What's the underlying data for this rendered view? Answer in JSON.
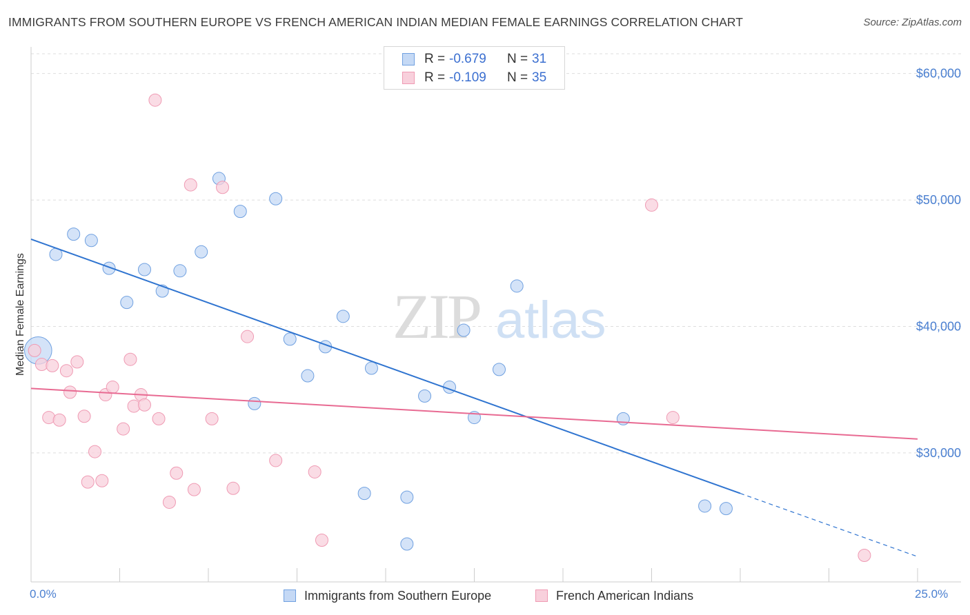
{
  "chart_data": {
    "type": "scatter",
    "title": "IMMIGRANTS FROM SOUTHERN EUROPE VS FRENCH AMERICAN INDIAN MEDIAN FEMALE EARNINGS CORRELATION CHART",
    "source": "Source: ZipAtlas.com",
    "ylabel": "Median Female Earnings",
    "xlabel": "",
    "xlim": [
      0,
      25
    ],
    "ylim": [
      21000,
      62000
    ],
    "x_tick_labels": [
      "0.0%",
      "25.0%"
    ],
    "y_ticks": [
      30000,
      40000,
      50000,
      60000
    ],
    "y_tick_labels": [
      "$30,000",
      "$40,000",
      "$50,000",
      "$60,000"
    ],
    "watermark": {
      "zip": "ZIP",
      "atlas": "atlas"
    },
    "series": [
      {
        "name": "Immigrants from Southern Europe",
        "color": "#6fa0e0",
        "fill": "#c5d9f5",
        "line_color": "#2f74d0",
        "R": "-0.679",
        "N": "31",
        "trend": {
          "x_start": 0,
          "y_start": 46900,
          "x_solid_end": 20.0,
          "y_solid_end": 26800,
          "x_end": 25.0,
          "y_end": 21800
        },
        "points": [
          {
            "x": 0.2,
            "y": 38100,
            "size": 2.2
          },
          {
            "x": 0.7,
            "y": 45700
          },
          {
            "x": 1.2,
            "y": 47300
          },
          {
            "x": 1.7,
            "y": 46800
          },
          {
            "x": 2.2,
            "y": 44600
          },
          {
            "x": 2.7,
            "y": 41900
          },
          {
            "x": 3.2,
            "y": 44500
          },
          {
            "x": 3.7,
            "y": 42800
          },
          {
            "x": 4.2,
            "y": 44400
          },
          {
            "x": 4.8,
            "y": 45900
          },
          {
            "x": 5.3,
            "y": 51700
          },
          {
            "x": 5.9,
            "y": 49100
          },
          {
            "x": 6.3,
            "y": 33900
          },
          {
            "x": 6.9,
            "y": 50100
          },
          {
            "x": 7.3,
            "y": 39000
          },
          {
            "x": 7.8,
            "y": 36100
          },
          {
            "x": 8.3,
            "y": 38400
          },
          {
            "x": 8.8,
            "y": 40800
          },
          {
            "x": 9.6,
            "y": 36700
          },
          {
            "x": 9.4,
            "y": 26800
          },
          {
            "x": 10.6,
            "y": 26500
          },
          {
            "x": 10.6,
            "y": 22800
          },
          {
            "x": 11.1,
            "y": 34500
          },
          {
            "x": 11.8,
            "y": 35200
          },
          {
            "x": 12.2,
            "y": 39700
          },
          {
            "x": 12.5,
            "y": 32800
          },
          {
            "x": 13.2,
            "y": 36600
          },
          {
            "x": 13.7,
            "y": 43200
          },
          {
            "x": 16.7,
            "y": 32700
          },
          {
            "x": 19.0,
            "y": 25800
          },
          {
            "x": 19.6,
            "y": 25600
          }
        ]
      },
      {
        "name": "French American Indians",
        "color": "#ef9ab3",
        "fill": "#f8d0dc",
        "line_color": "#e86a92",
        "R": "-0.109",
        "N": "35",
        "trend": {
          "x_start": 0,
          "y_start": 35100,
          "x_end": 25.0,
          "y_end": 31100
        },
        "points": [
          {
            "x": 0.1,
            "y": 38100
          },
          {
            "x": 0.3,
            "y": 37000
          },
          {
            "x": 0.5,
            "y": 32800
          },
          {
            "x": 0.6,
            "y": 36900
          },
          {
            "x": 0.8,
            "y": 32600
          },
          {
            "x": 1.0,
            "y": 36500
          },
          {
            "x": 1.1,
            "y": 34800
          },
          {
            "x": 1.3,
            "y": 37200
          },
          {
            "x": 1.5,
            "y": 32900
          },
          {
            "x": 1.6,
            "y": 27700
          },
          {
            "x": 1.8,
            "y": 30100
          },
          {
            "x": 2.0,
            "y": 27800
          },
          {
            "x": 2.1,
            "y": 34600
          },
          {
            "x": 2.3,
            "y": 35200
          },
          {
            "x": 2.6,
            "y": 31900
          },
          {
            "x": 2.8,
            "y": 37400
          },
          {
            "x": 2.9,
            "y": 33700
          },
          {
            "x": 3.1,
            "y": 34600
          },
          {
            "x": 3.2,
            "y": 33800
          },
          {
            "x": 3.5,
            "y": 57900
          },
          {
            "x": 3.6,
            "y": 32700
          },
          {
            "x": 3.9,
            "y": 26100
          },
          {
            "x": 4.1,
            "y": 28400
          },
          {
            "x": 4.5,
            "y": 51200
          },
          {
            "x": 4.6,
            "y": 27100
          },
          {
            "x": 5.1,
            "y": 32700
          },
          {
            "x": 5.4,
            "y": 51000
          },
          {
            "x": 5.7,
            "y": 27200
          },
          {
            "x": 6.1,
            "y": 39200
          },
          {
            "x": 6.9,
            "y": 29400
          },
          {
            "x": 8.0,
            "y": 28500
          },
          {
            "x": 8.2,
            "y": 23100
          },
          {
            "x": 17.5,
            "y": 49600
          },
          {
            "x": 18.1,
            "y": 32800
          },
          {
            "x": 23.5,
            "y": 21900
          }
        ]
      }
    ]
  }
}
